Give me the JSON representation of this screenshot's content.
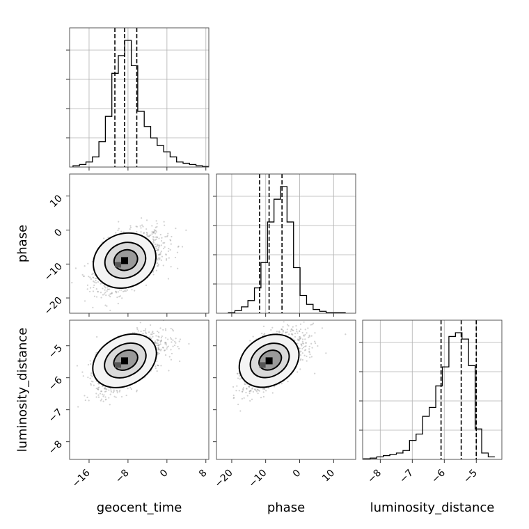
{
  "chart_data": {
    "type": "corner",
    "parameters": [
      {
        "name": "geocent_time",
        "ticks": [
          "−16",
          "−8",
          "0",
          "8"
        ],
        "tick_values": [
          -16,
          -8,
          0,
          8
        ],
        "range": [
          -20,
          8.6
        ],
        "quantiles": [
          -10.7,
          -8.7,
          -6.2
        ],
        "hist_edges_start": -19.3,
        "hist_bin_width": 1.33,
        "hist_values": [
          0.01,
          0.02,
          0.04,
          0.08,
          0.2,
          0.4,
          0.74,
          0.88,
          1.0,
          0.8,
          0.44,
          0.32,
          0.23,
          0.17,
          0.12,
          0.08,
          0.04,
          0.03,
          0.02,
          0.01,
          0.005
        ]
      },
      {
        "name": "phase",
        "ticks": [
          "−20",
          "−10",
          "0",
          "10"
        ],
        "tick_values": [
          -20,
          -10,
          0,
          10
        ],
        "range": [
          -24.5,
          16.5
        ],
        "quantiles": [
          -11.8,
          -9.0,
          -5.2
        ],
        "hist_edges_start": -21.0,
        "hist_bin_width": 1.92,
        "hist_values": [
          0.005,
          0.02,
          0.05,
          0.1,
          0.2,
          0.4,
          0.72,
          0.9,
          1.0,
          0.72,
          0.36,
          0.14,
          0.07,
          0.03,
          0.015,
          0.005,
          0.005,
          0.005
        ]
      },
      {
        "name": "luminosity_distance",
        "ticks": [
          "−8",
          "−7",
          "−6",
          "−5"
        ],
        "tick_values": [
          -8,
          -7,
          -6,
          -5
        ],
        "range": [
          -8.55,
          -4.2
        ],
        "quantiles": [
          -6.1,
          -5.47,
          -5.0
        ],
        "hist_edges_start": -8.52,
        "hist_bin_width": 0.205,
        "hist_values": [
          0.005,
          0.01,
          0.02,
          0.03,
          0.04,
          0.05,
          0.07,
          0.15,
          0.2,
          0.34,
          0.41,
          0.58,
          0.73,
          0.97,
          1.0,
          0.95,
          0.74,
          0.24,
          0.05,
          0.02
        ]
      }
    ],
    "pairs": [
      {
        "x": "geocent_time",
        "y": "phase",
        "y_ticks": [
          "−20",
          "−10",
          "0",
          "10"
        ],
        "y_tick_values": [
          -20,
          -10,
          0,
          10
        ],
        "y_range": [
          -24.5,
          16.5
        ],
        "center": [
          -8.7,
          -9.0
        ],
        "spread": [
          3.2,
          4.2
        ],
        "correlation": 0.45
      },
      {
        "x": "geocent_time",
        "y": "luminosity_distance",
        "y_ticks": [
          "−8",
          "−7",
          "−6",
          "−5"
        ],
        "y_tick_values": [
          -8,
          -7,
          -6,
          -5
        ],
        "y_range": [
          -8.55,
          -4.2
        ],
        "center": [
          -8.7,
          -5.47
        ],
        "spread": [
          3.2,
          0.45
        ],
        "correlation": 0.6
      },
      {
        "x": "phase",
        "y": "luminosity_distance",
        "y_ticks": [
          "−8",
          "−7",
          "−6",
          "−5"
        ],
        "y_tick_values": [
          -8,
          -7,
          -6,
          -5
        ],
        "y_range": [
          -8.55,
          -4.2
        ],
        "center": [
          -9.0,
          -5.47
        ],
        "spread": [
          4.2,
          0.45
        ],
        "correlation": 0.6
      }
    ],
    "grid": true
  }
}
